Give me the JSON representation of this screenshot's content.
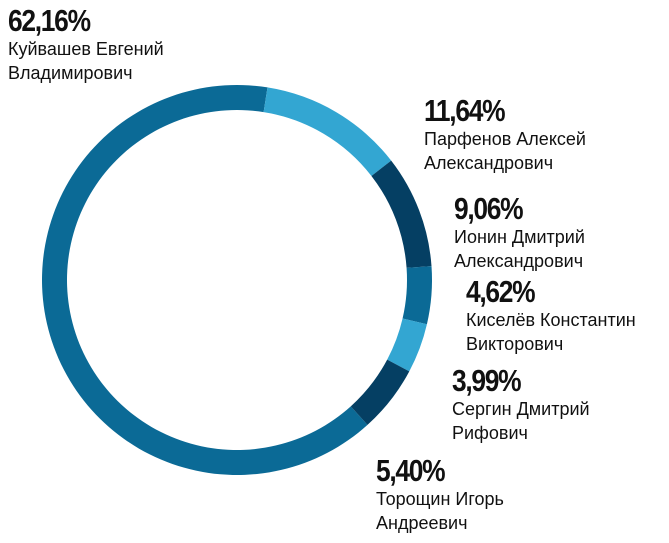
{
  "chart_data": {
    "type": "donut",
    "categories": [
      "Куйвашев Евгений Владимирович",
      "Парфенов Алексей Александрович",
      "Ионин Дмитрий Александрович",
      "Киселёв Константин Викторович",
      "Сергин Дмитрий Рифович",
      "Торощин Игорь Андреевич"
    ],
    "values": [
      62.16,
      11.64,
      9.06,
      4.62,
      3.99,
      5.4
    ],
    "value_labels": [
      "62,16%",
      "11,64%",
      "9,06%",
      "4,62%",
      "3,99%",
      "5,40%"
    ],
    "colors": [
      "#0b6a96",
      "#33a6d2",
      "#053f63",
      "#0b6a96",
      "#33a6d2",
      "#053f63"
    ]
  }
}
